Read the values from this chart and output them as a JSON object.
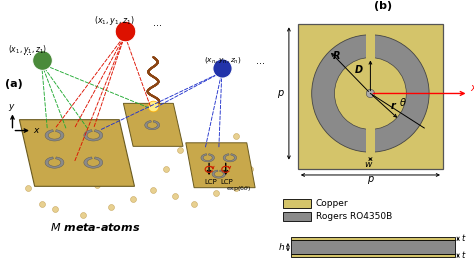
{
  "bg_color": "#ffffff",
  "board_color": "#c8a84b",
  "board_edge_color": "#6a5a20",
  "substrate_color": "#8a8a8a",
  "ring_color": "#8a8a8a",
  "copper_color": "#d4c46a",
  "copper_legend": "Copper",
  "rogers_legend": "Rogers RO4350B",
  "ball_green": "#4a8a3a",
  "ball_red": "#dd1100",
  "ball_blue": "#2233aa",
  "panel_a": "(a)",
  "panel_b": "(b)",
  "bottom_label": "M meta-atoms"
}
